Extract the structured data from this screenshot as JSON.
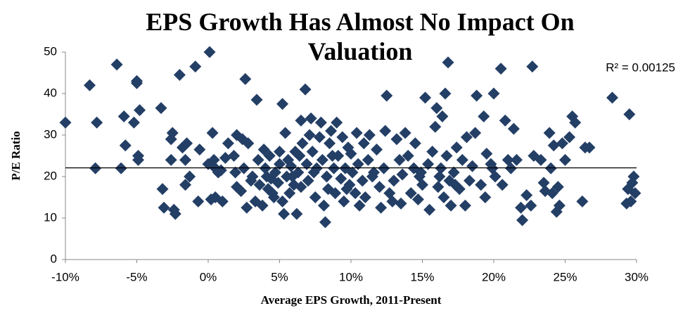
{
  "chart_data": {
    "type": "scatter",
    "title": "EPS Growth Has Almost No Impact On Valuation",
    "xlabel": "Average EPS Growth, 2011-Present",
    "ylabel": "P/E Ratio",
    "annotation": "R² = 0.00125",
    "color": "#243f66",
    "xlim": [
      -10,
      30
    ],
    "xticks": [
      {
        "value": -10,
        "label": "-10%"
      },
      {
        "value": -5,
        "label": "-5%"
      },
      {
        "value": 0,
        "label": "0%"
      },
      {
        "value": 5,
        "label": "5%"
      },
      {
        "value": 10,
        "label": "10%"
      },
      {
        "value": 15,
        "label": "15%"
      },
      {
        "value": 20,
        "label": "20%"
      },
      {
        "value": 25,
        "label": "25%"
      },
      {
        "value": 30,
        "label": "30%"
      }
    ],
    "ylim": [
      0,
      50
    ],
    "yticks": [
      0,
      10,
      20,
      30,
      40,
      50
    ],
    "x": [
      -10,
      -8.3,
      -7.8,
      -7.9,
      -6.4,
      -6.1,
      -5.9,
      -5.8,
      -5.2,
      -5,
      -5,
      -4.9,
      -4.9,
      -4.8,
      -3.3,
      -3.2,
      -3.1,
      -2.6,
      -2.6,
      -2.5,
      -2.4,
      -2.3,
      -2,
      -1.8,
      -1.6,
      -1.5,
      -1.6,
      -1.3,
      -0.9,
      -0.7,
      -0.6,
      0,
      0.1,
      0.2,
      0.3,
      0.5,
      0.5,
      0.9,
      1,
      1.2,
      1.4,
      1.8,
      1.9,
      2,
      2,
      2.3,
      2.4,
      2.5,
      2.6,
      2.7,
      2.8,
      3.1,
      3.3,
      3.4,
      3.5,
      3.6,
      3.8,
      3.9,
      4,
      4.1,
      4.2,
      4.3,
      4.4,
      4.6,
      4.7,
      4.9,
      5,
      5,
      5.2,
      5.2,
      5.3,
      5.4,
      5.5,
      5.6,
      5.7,
      5.8,
      6,
      6.1,
      6.2,
      6.3,
      6.4,
      6.5,
      6.5,
      6.6,
      6.8,
      6.9,
      7,
      7.1,
      7.2,
      7.3,
      7.5,
      7.6,
      7.8,
      7.9,
      8,
      8.1,
      8.2,
      8.3,
      8.4,
      8.5,
      8.6,
      8.8,
      8.9,
      9,
      9.1,
      9.3,
      9.4,
      9.5,
      9.6,
      9.8,
      9.9,
      10,
      10.1,
      10.3,
      10.4,
      10.5,
      10.6,
      10.8,
      10.9,
      11,
      11.2,
      11.3,
      11.5,
      11.8,
      12,
      12.1,
      12.3,
      12.4,
      12.5,
      12.7,
      12.9,
      13,
      13.2,
      13.4,
      13.5,
      13.6,
      13.8,
      14,
      14.2,
      14.4,
      14.5,
      14.7,
      14.8,
      15,
      15.2,
      15.4,
      15.5,
      15.7,
      15.9,
      16,
      16.1,
      16.3,
      16.4,
      16.5,
      16.6,
      16.7,
      16.8,
      16.9,
      17,
      17.2,
      17.4,
      17.6,
      17.8,
      18,
      18.1,
      18.3,
      18.5,
      18.7,
      18.8,
      19.1,
      19.3,
      19.4,
      19.5,
      19.8,
      20,
      20.1,
      20.5,
      20.6,
      20.8,
      21,
      21.2,
      21.4,
      21.6,
      21.9,
      22,
      22.3,
      22.6,
      22.7,
      22.8,
      23.3,
      23.5,
      23.6,
      23.9,
      24,
      24.2,
      24.4,
      24.5,
      24.6,
      24.8,
      25,
      25.3,
      25.5,
      25.7,
      26.2,
      26.4,
      26.7,
      28.3,
      29.3,
      29.4,
      29.5,
      29.6,
      29.8,
      29.9,
      29.7,
      0.4,
      0.7,
      3,
      4.5,
      5.9,
      7.4,
      8.7,
      9.7,
      11.6,
      14.9,
      16.2,
      17.3,
      19.9,
      24.1
    ],
    "y": [
      33,
      42,
      33,
      22,
      47,
      22,
      34.5,
      27.5,
      33,
      43,
      42.5,
      25,
      24,
      36,
      36.5,
      17,
      12.5,
      24,
      29,
      30.5,
      12,
      11,
      44.5,
      27,
      18,
      28,
      24,
      20,
      46.5,
      14,
      26.5,
      23,
      50,
      14.5,
      30.5,
      15,
      22,
      21.5,
      14,
      24.5,
      28,
      25,
      21,
      17.5,
      30,
      16.5,
      29,
      22,
      43.5,
      12.5,
      28,
      20,
      14,
      38.5,
      24,
      18,
      13,
      26.5,
      22,
      20,
      17,
      25,
      19.5,
      15,
      21,
      18.5,
      26,
      23,
      14,
      37.5,
      11,
      30.5,
      20,
      24,
      16,
      22.5,
      18,
      26,
      11,
      21,
      25,
      33.5,
      17.5,
      28,
      41,
      23,
      19,
      30,
      34,
      26,
      15,
      22,
      29.5,
      33,
      24,
      13,
      9,
      20,
      17,
      28,
      31,
      22,
      16,
      33,
      25,
      19.5,
      29.5,
      14,
      22,
      27,
      18,
      25.5,
      21,
      16,
      30.5,
      23,
      13,
      19,
      28,
      15,
      24,
      30,
      20,
      26.5,
      17.5,
      12.5,
      22,
      31,
      39.5,
      16,
      14,
      19,
      29,
      24,
      13.5,
      20.5,
      30.5,
      25,
      16,
      22,
      28,
      14.5,
      20,
      18,
      39,
      23,
      12,
      26,
      32,
      36.5,
      17.5,
      22,
      34.5,
      15,
      40,
      25,
      47.5,
      19,
      13,
      21,
      27,
      17,
      24,
      13,
      29.5,
      19,
      22.5,
      30.5,
      39.5,
      18,
      34.5,
      15,
      25.5,
      23,
      40,
      20,
      46,
      18,
      33.5,
      24,
      22,
      31.5,
      24,
      12.5,
      9.5,
      15.5,
      13,
      46.5,
      25,
      24,
      18.5,
      16.5,
      30.5,
      22,
      27.5,
      11.5,
      17.5,
      13,
      28,
      24,
      29.5,
      34.5,
      33,
      14,
      27,
      27,
      39,
      13.5,
      17,
      35,
      14,
      20,
      16,
      18.5,
      24,
      21,
      19,
      16,
      20,
      21,
      25,
      17,
      21,
      21,
      20,
      18,
      22,
      16
    ],
    "trendline": {
      "x": [
        -10,
        30
      ],
      "y": [
        22.1,
        22.1
      ]
    }
  }
}
